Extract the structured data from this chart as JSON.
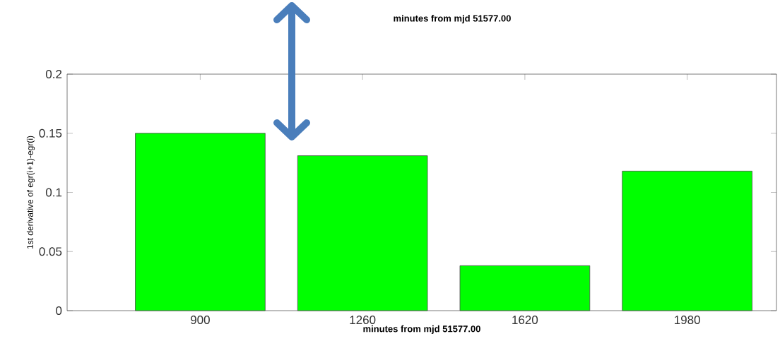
{
  "chart_data": {
    "type": "bar",
    "categories": [
      "900",
      "1260",
      "1620",
      "1980"
    ],
    "values": [
      0.15,
      0.131,
      0.038,
      0.118
    ],
    "color": "#00ff00",
    "xlabel": "minutes from mjd 51577.00",
    "ylabel": "1st derivative of egr(i+1)-egr(i)",
    "ylim": [
      0,
      0.2
    ],
    "yticks": [
      0,
      0.05,
      0.1,
      0.15,
      0.2
    ],
    "annotations": [
      "minutes from mjd 51577.00"
    ]
  }
}
